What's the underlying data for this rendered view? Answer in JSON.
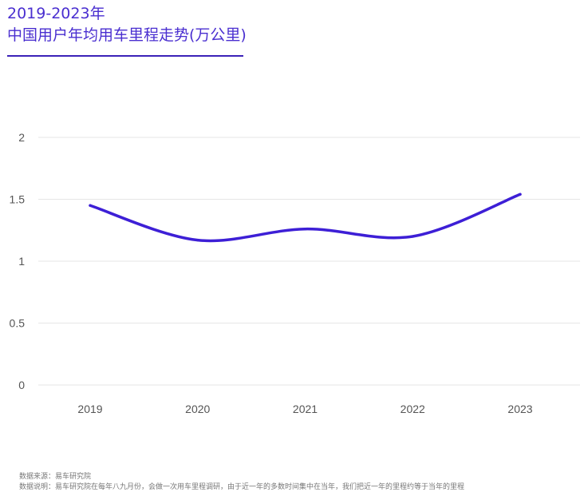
{
  "chart_data": {
    "type": "line",
    "title_line1": "2019-2023年",
    "title_line2": "中国用户年均用车里程走势(万公里)",
    "categories": [
      "2019",
      "2020",
      "2021",
      "2022",
      "2023"
    ],
    "series": [
      {
        "values": [
          1.45,
          1.17,
          1.26,
          1.2,
          1.54
        ],
        "color": "#3d1fd6"
      }
    ],
    "yticks": [
      "0",
      "0.5",
      "1",
      "1.5",
      "2"
    ],
    "ylim": [
      0,
      2
    ],
    "grid": true,
    "legend": "none"
  },
  "footer": {
    "source": "数据来源：易车研究院",
    "note": "数据说明：易车研究院在每年八九月份，会做一次用车里程调研，由于近一年的多数时间集中在当年，我们把近一年的里程约等于当年的里程"
  },
  "colors": {
    "accent": "#4a2fd0",
    "line": "#3d1fd6",
    "grid": "#e6e6e6"
  }
}
